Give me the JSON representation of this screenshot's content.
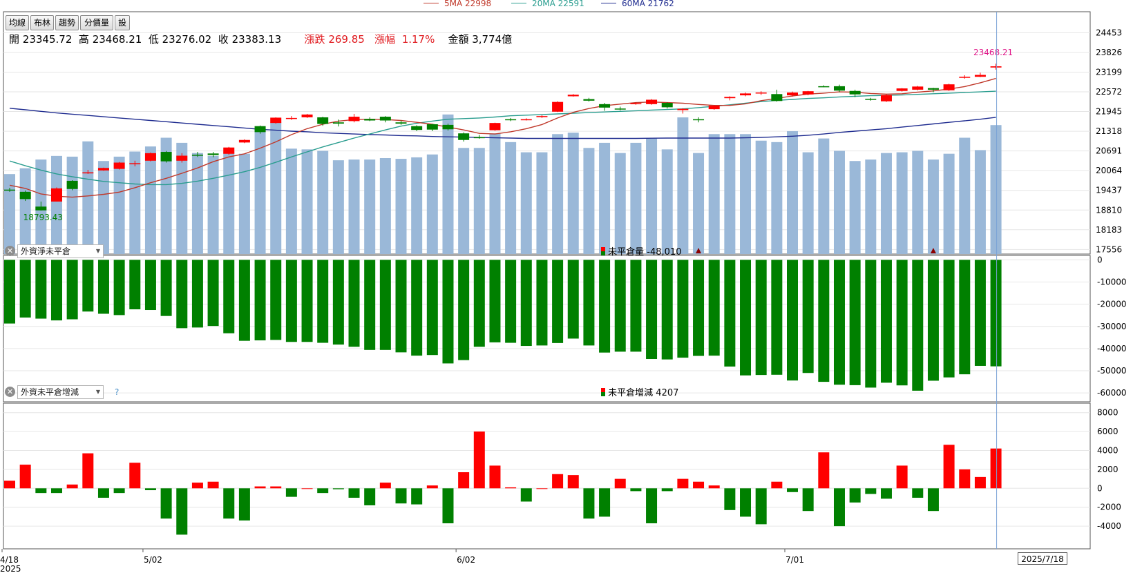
{
  "toolbar": {
    "buttons": [
      "均線",
      "布林",
      "趨勢",
      "分價量",
      "設"
    ]
  },
  "ma_legend": [
    {
      "label": "5MA 22998",
      "color": "#c0392b"
    },
    {
      "label": "20MA 22591",
      "color": "#2a9d8f"
    },
    {
      "label": "60MA 21762",
      "color": "#1e2b8f"
    }
  ],
  "quote": {
    "open_label": "開",
    "open": "23345.72",
    "high_label": "高",
    "high": "23468.21",
    "low_label": "低",
    "low": "23276.02",
    "close_label": "收",
    "close": "23383.13",
    "change_label": "漲跌",
    "change": "269.85",
    "pct_label": "漲幅",
    "pct": "1.17%",
    "amount_label": "金額",
    "amount": "3,774億"
  },
  "panel2": {
    "selector": "外資淨未平倉",
    "legend_label": "未平倉量",
    "legend_value": "-48,010"
  },
  "panel3": {
    "selector": "外資未平倉增減",
    "help": "?",
    "legend_label": "未平倉增減",
    "legend_value": "4207"
  },
  "cursor_date": "2025/7/18",
  "colors": {
    "up": "#ff0000",
    "down": "#008000",
    "volume": "#9ab8d8",
    "grid": "#e6e6e6"
  },
  "chart_data": [
    {
      "type": "candlestick",
      "title": "",
      "x_labels": [
        {
          "index": 0,
          "label": "4/18",
          "sub": "2025"
        },
        {
          "index": 9,
          "label": "5/02"
        },
        {
          "index": 29,
          "label": "6/02"
        },
        {
          "index": 50,
          "label": "7/01"
        }
      ],
      "y_ticks": [
        24453,
        23826,
        23199,
        22572,
        21945,
        21318,
        20691,
        20064,
        19437,
        18810,
        18183,
        17556
      ],
      "ylim": [
        17410,
        25120
      ],
      "candles": [
        {
          "o": 19460,
          "h": 19520,
          "c": 19430,
          "l": 19390
        },
        {
          "o": 19390,
          "h": 19430,
          "c": 19160,
          "l": 19100
        },
        {
          "o": 18920,
          "h": 19080,
          "c": 18800,
          "l": 18793.43
        },
        {
          "o": 19080,
          "h": 19530,
          "c": 19500,
          "l": 19080
        },
        {
          "o": 19740,
          "h": 19760,
          "c": 19480,
          "l": 19440
        },
        {
          "o": 20000,
          "h": 20090,
          "c": 20010,
          "l": 19960
        },
        {
          "o": 20070,
          "h": 20160,
          "c": 20150,
          "l": 20060
        },
        {
          "o": 20120,
          "h": 20340,
          "c": 20320,
          "l": 20100
        },
        {
          "o": 20290,
          "h": 20380,
          "c": 20300,
          "l": 20200
        },
        {
          "o": 20380,
          "h": 20640,
          "c": 20620,
          "l": 20360
        },
        {
          "o": 20660,
          "h": 20690,
          "c": 20360,
          "l": 20320
        },
        {
          "o": 20380,
          "h": 20620,
          "c": 20540,
          "l": 20320
        },
        {
          "o": 20570,
          "h": 20660,
          "c": 20560,
          "l": 20500
        },
        {
          "o": 20610,
          "h": 20660,
          "c": 20560,
          "l": 20490
        },
        {
          "o": 20600,
          "h": 20820,
          "c": 20800,
          "l": 20570
        },
        {
          "o": 20960,
          "h": 21060,
          "c": 21040,
          "l": 20940
        },
        {
          "o": 21480,
          "h": 21500,
          "c": 21290,
          "l": 21240
        },
        {
          "o": 21580,
          "h": 21760,
          "c": 21750,
          "l": 21560
        },
        {
          "o": 21720,
          "h": 21800,
          "c": 21740,
          "l": 21680
        },
        {
          "o": 21760,
          "h": 21870,
          "c": 21850,
          "l": 21740
        },
        {
          "o": 21760,
          "h": 21780,
          "c": 21550,
          "l": 21490
        },
        {
          "o": 21600,
          "h": 21690,
          "c": 21560,
          "l": 21470
        },
        {
          "o": 21640,
          "h": 21870,
          "c": 21780,
          "l": 21600
        },
        {
          "o": 21710,
          "h": 21760,
          "c": 21660,
          "l": 21640
        },
        {
          "o": 21780,
          "h": 21800,
          "c": 21660,
          "l": 21600
        },
        {
          "o": 21600,
          "h": 21660,
          "c": 21560,
          "l": 21520
        },
        {
          "o": 21480,
          "h": 21510,
          "c": 21360,
          "l": 21320
        },
        {
          "o": 21540,
          "h": 21550,
          "c": 21370,
          "l": 21320
        },
        {
          "o": 21520,
          "h": 21560,
          "c": 21380,
          "l": 21340
        },
        {
          "o": 21250,
          "h": 21280,
          "c": 21040,
          "l": 20990
        },
        {
          "o": 21130,
          "h": 21200,
          "c": 21120,
          "l": 21080
        },
        {
          "o": 21350,
          "h": 21590,
          "c": 21580,
          "l": 21330
        },
        {
          "o": 21700,
          "h": 21740,
          "c": 21680,
          "l": 21640
        },
        {
          "o": 21690,
          "h": 21730,
          "c": 21700,
          "l": 21660
        },
        {
          "o": 21790,
          "h": 21830,
          "c": 21800,
          "l": 21740
        },
        {
          "o": 21940,
          "h": 22270,
          "c": 22250,
          "l": 21930
        },
        {
          "o": 22430,
          "h": 22500,
          "c": 22480,
          "l": 22420
        },
        {
          "o": 22340,
          "h": 22380,
          "c": 22290,
          "l": 22260
        },
        {
          "o": 22180,
          "h": 22220,
          "c": 22070,
          "l": 21970
        },
        {
          "o": 22040,
          "h": 22100,
          "c": 22030,
          "l": 21980
        },
        {
          "o": 22200,
          "h": 22240,
          "c": 22210,
          "l": 22160
        },
        {
          "o": 22180,
          "h": 22340,
          "c": 22320,
          "l": 22160
        },
        {
          "o": 22220,
          "h": 22240,
          "c": 22080,
          "l": 22040
        },
        {
          "o": 21990,
          "h": 22050,
          "c": 22030,
          "l": 21880
        },
        {
          "o": 21700,
          "h": 21760,
          "c": 21690,
          "l": 21600
        },
        {
          "o": 22020,
          "h": 22150,
          "c": 22130,
          "l": 22000
        },
        {
          "o": 22370,
          "h": 22430,
          "c": 22410,
          "l": 22300
        },
        {
          "o": 22460,
          "h": 22550,
          "c": 22520,
          "l": 22430
        },
        {
          "o": 22530,
          "h": 22590,
          "c": 22550,
          "l": 22470
        },
        {
          "o": 22500,
          "h": 22640,
          "c": 22280,
          "l": 22260
        },
        {
          "o": 22460,
          "h": 22580,
          "c": 22550,
          "l": 22420
        },
        {
          "o": 22490,
          "h": 22600,
          "c": 22590,
          "l": 22460
        },
        {
          "o": 22750,
          "h": 22780,
          "c": 22740,
          "l": 22720
        },
        {
          "o": 22750,
          "h": 22800,
          "c": 22610,
          "l": 22560
        },
        {
          "o": 22600,
          "h": 22640,
          "c": 22490,
          "l": 22400
        },
        {
          "o": 22350,
          "h": 22380,
          "c": 22340,
          "l": 22290
        },
        {
          "o": 22270,
          "h": 22500,
          "c": 22470,
          "l": 22250
        },
        {
          "o": 22600,
          "h": 22690,
          "c": 22680,
          "l": 22580
        },
        {
          "o": 22640,
          "h": 22760,
          "c": 22740,
          "l": 22620
        },
        {
          "o": 22690,
          "h": 22700,
          "c": 22640,
          "l": 22560
        },
        {
          "o": 22620,
          "h": 22830,
          "c": 22810,
          "l": 22600
        },
        {
          "o": 23050,
          "h": 23100,
          "c": 23050,
          "l": 22990
        },
        {
          "o": 23050,
          "h": 23180,
          "c": 23110,
          "l": 23040
        },
        {
          "o": 23345.72,
          "h": 23468.21,
          "c": 23383.13,
          "l": 23276.02
        }
      ],
      "volume_billion": [
        3100,
        3180,
        3300,
        3350,
        3340,
        3550,
        3280,
        3340,
        3410,
        3480,
        3600,
        3530,
        3390,
        3350,
        3410,
        3380,
        3720,
        3810,
        3450,
        3440,
        3420,
        3290,
        3300,
        3300,
        3320,
        3310,
        3330,
        3370,
        3920,
        3460,
        3460,
        3660,
        3540,
        3400,
        3400,
        3650,
        3670,
        3460,
        3530,
        3390,
        3530,
        3590,
        3440,
        3880,
        3390,
        3650,
        3650,
        3650,
        3560,
        3540,
        3690,
        3400,
        3590,
        3420,
        3280,
        3300,
        3390,
        3400,
        3420,
        3300,
        3380,
        3600,
        3430,
        3774
      ],
      "ma5": [
        19600,
        19500,
        19320,
        19250,
        19220,
        19260,
        19310,
        19380,
        19520,
        19680,
        19820,
        19980,
        20150,
        20350,
        20500,
        20600,
        20780,
        20980,
        21210,
        21400,
        21540,
        21640,
        21690,
        21700,
        21690,
        21660,
        21600,
        21540,
        21450,
        21360,
        21250,
        21230,
        21300,
        21400,
        21530,
        21740,
        21920,
        22040,
        22130,
        22180,
        22230,
        22250,
        22230,
        22210,
        22170,
        22140,
        22140,
        22190,
        22290,
        22360,
        22440,
        22500,
        22530,
        22570,
        22560,
        22520,
        22500,
        22510,
        22560,
        22600,
        22660,
        22740,
        22860,
        22998
      ],
      "ma20": [
        20370,
        20220,
        20080,
        19960,
        19870,
        19790,
        19720,
        19680,
        19640,
        19620,
        19620,
        19660,
        19730,
        19820,
        19920,
        20030,
        20170,
        20330,
        20500,
        20660,
        20820,
        20960,
        21100,
        21230,
        21360,
        21480,
        21570,
        21640,
        21700,
        21720,
        21740,
        21770,
        21810,
        21830,
        21850,
        21870,
        21890,
        21910,
        21930,
        21950,
        21970,
        21990,
        22010,
        22030,
        22070,
        22110,
        22160,
        22210,
        22260,
        22300,
        22330,
        22360,
        22380,
        22410,
        22430,
        22450,
        22460,
        22470,
        22490,
        22510,
        22530,
        22550,
        22570,
        22591
      ],
      "ma60": [
        22050,
        22000,
        21950,
        21900,
        21860,
        21820,
        21780,
        21740,
        21700,
        21660,
        21620,
        21580,
        21540,
        21500,
        21460,
        21420,
        21380,
        21350,
        21320,
        21300,
        21270,
        21250,
        21230,
        21210,
        21200,
        21180,
        21170,
        21150,
        21140,
        21130,
        21120,
        21110,
        21100,
        21090,
        21090,
        21090,
        21090,
        21090,
        21090,
        21090,
        21090,
        21095,
        21100,
        21100,
        21100,
        21100,
        21100,
        21110,
        21120,
        21140,
        21160,
        21190,
        21230,
        21280,
        21320,
        21360,
        21400,
        21450,
        21500,
        21550,
        21600,
        21650,
        21700,
        21762
      ],
      "annotations": [
        {
          "index": 2,
          "text": "18793.43",
          "color": "#008000"
        },
        {
          "index": 63,
          "text": "23468.21",
          "color": "#e0198a"
        }
      ],
      "markers_at": [
        4,
        44,
        59
      ]
    },
    {
      "type": "bar",
      "title": "未平倉量",
      "y_ticks": [
        0,
        -10000,
        -20000,
        -30000,
        -40000,
        -50000,
        -60000
      ],
      "ylim": [
        -64000,
        2000
      ],
      "values": [
        -28700,
        -26000,
        -26500,
        -27300,
        -26800,
        -23300,
        -24300,
        -24900,
        -22300,
        -22600,
        -25300,
        -30800,
        -30500,
        -29800,
        -33100,
        -36500,
        -36300,
        -36100,
        -37000,
        -37000,
        -37400,
        -38200,
        -39200,
        -40600,
        -40600,
        -41700,
        -43200,
        -42900,
        -46700,
        -45200,
        -39200,
        -37200,
        -37400,
        -38800,
        -38600,
        -37500,
        -35500,
        -38600,
        -41800,
        -41400,
        -41400,
        -44700,
        -44900,
        -44100,
        -43300,
        -43200,
        -48100,
        -52100,
        -51900,
        -51800,
        -54400,
        -51000,
        -55000,
        -56300,
        -56500,
        -57600,
        -55400,
        -56600,
        -59000,
        -54500,
        -53000,
        -51600,
        -47800,
        -48010
      ]
    },
    {
      "type": "bar",
      "title": "未平倉增減",
      "y_ticks": [
        8000,
        6000,
        4000,
        2000,
        0,
        -2000,
        -4000
      ],
      "ylim": [
        -6400,
        9000
      ],
      "values": [
        800,
        2500,
        -500,
        -500,
        400,
        3700,
        -1000,
        -500,
        2700,
        -200,
        -3200,
        -4900,
        600,
        700,
        -3200,
        -3400,
        200,
        200,
        -900,
        0,
        -500,
        -100,
        -1000,
        -1800,
        600,
        -1600,
        -1700,
        300,
        -3700,
        1700,
        6000,
        2400,
        100,
        -1400,
        0,
        1500,
        1400,
        -3200,
        -3000,
        1000,
        -300,
        -3700,
        -300,
        1000,
        700,
        300,
        -2300,
        -3000,
        -3800,
        700,
        -400,
        -2400,
        3800,
        -4000,
        -1500,
        -600,
        -1100,
        2400,
        -1000,
        -2400,
        4600,
        2000,
        1200,
        4207
      ]
    }
  ]
}
